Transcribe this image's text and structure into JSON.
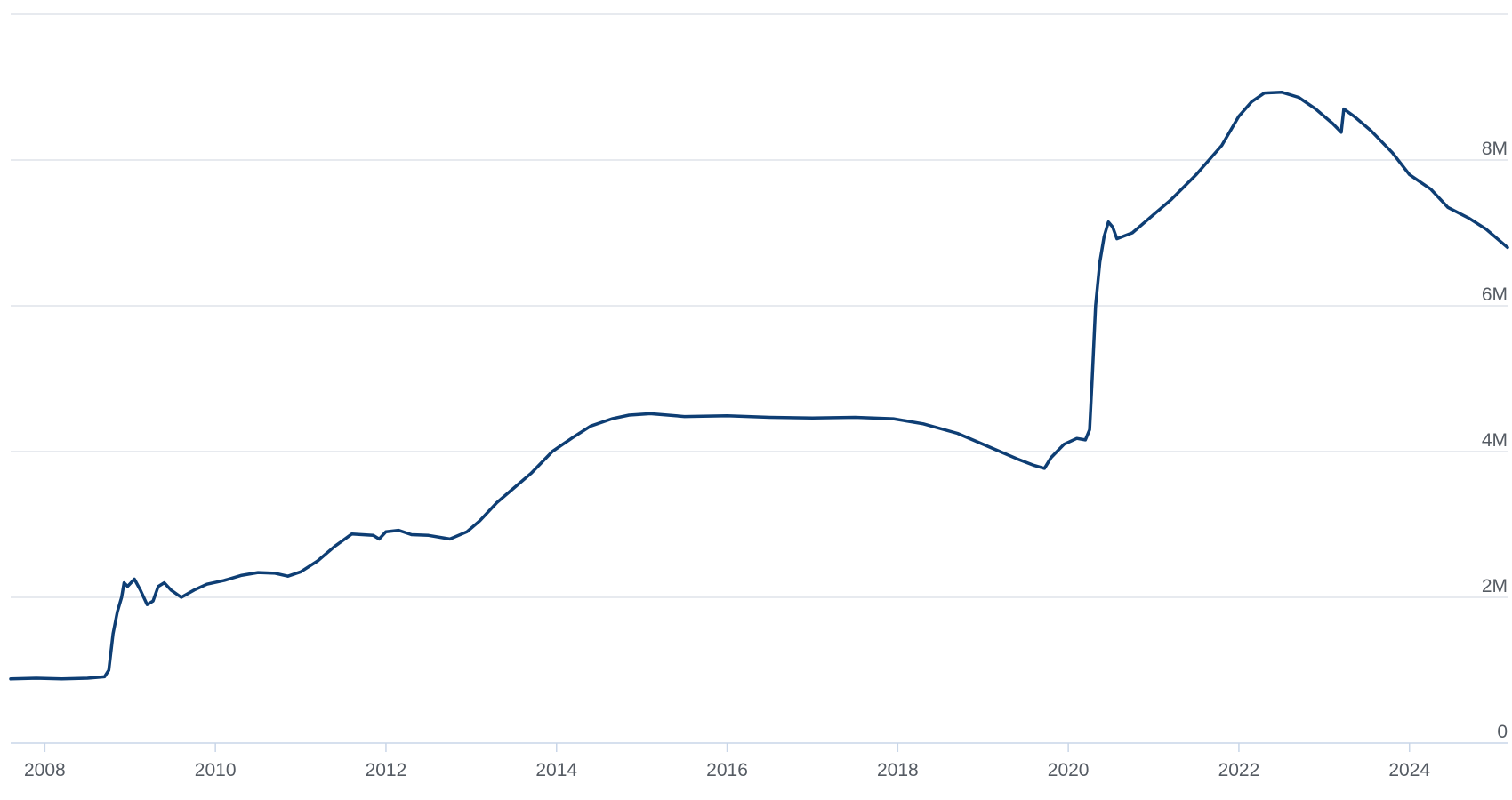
{
  "chart_data": {
    "type": "line",
    "title": "",
    "xlabel": "",
    "ylabel": "",
    "grid": true,
    "legend": "none",
    "xlim": [
      2007.6,
      2025.15
    ],
    "ylim": [
      0,
      10000000
    ],
    "y_ticks": [
      {
        "value": 0,
        "label": "0"
      },
      {
        "value": 2000000,
        "label": "2M"
      },
      {
        "value": 4000000,
        "label": "4M"
      },
      {
        "value": 6000000,
        "label": "6M"
      },
      {
        "value": 8000000,
        "label": "8M"
      }
    ],
    "x_ticks": [
      {
        "value": 2008,
        "label": "2008"
      },
      {
        "value": 2010,
        "label": "2010"
      },
      {
        "value": 2012,
        "label": "2012"
      },
      {
        "value": 2014,
        "label": "2014"
      },
      {
        "value": 2016,
        "label": "2016"
      },
      {
        "value": 2018,
        "label": "2018"
      },
      {
        "value": 2020,
        "label": "2020"
      },
      {
        "value": 2022,
        "label": "2022"
      },
      {
        "value": 2024,
        "label": "2024"
      }
    ],
    "series": [
      {
        "color": "#0e3e74",
        "points": [
          [
            2007.6,
            880000
          ],
          [
            2007.9,
            890000
          ],
          [
            2008.2,
            880000
          ],
          [
            2008.5,
            890000
          ],
          [
            2008.7,
            910000
          ],
          [
            2008.75,
            1000000
          ],
          [
            2008.8,
            1500000
          ],
          [
            2008.85,
            1800000
          ],
          [
            2008.9,
            2000000
          ],
          [
            2008.93,
            2200000
          ],
          [
            2008.97,
            2150000
          ],
          [
            2009.05,
            2250000
          ],
          [
            2009.12,
            2100000
          ],
          [
            2009.2,
            1900000
          ],
          [
            2009.27,
            1950000
          ],
          [
            2009.33,
            2150000
          ],
          [
            2009.4,
            2200000
          ],
          [
            2009.48,
            2100000
          ],
          [
            2009.6,
            2000000
          ],
          [
            2009.75,
            2100000
          ],
          [
            2009.9,
            2180000
          ],
          [
            2010.1,
            2230000
          ],
          [
            2010.3,
            2300000
          ],
          [
            2010.5,
            2340000
          ],
          [
            2010.7,
            2330000
          ],
          [
            2010.85,
            2290000
          ],
          [
            2011.0,
            2350000
          ],
          [
            2011.2,
            2500000
          ],
          [
            2011.4,
            2700000
          ],
          [
            2011.6,
            2870000
          ],
          [
            2011.85,
            2850000
          ],
          [
            2011.92,
            2800000
          ],
          [
            2012.0,
            2900000
          ],
          [
            2012.15,
            2920000
          ],
          [
            2012.3,
            2860000
          ],
          [
            2012.5,
            2850000
          ],
          [
            2012.75,
            2800000
          ],
          [
            2012.95,
            2900000
          ],
          [
            2013.1,
            3050000
          ],
          [
            2013.3,
            3300000
          ],
          [
            2013.5,
            3500000
          ],
          [
            2013.7,
            3700000
          ],
          [
            2013.95,
            4000000
          ],
          [
            2014.2,
            4200000
          ],
          [
            2014.4,
            4350000
          ],
          [
            2014.65,
            4450000
          ],
          [
            2014.85,
            4500000
          ],
          [
            2015.1,
            4520000
          ],
          [
            2015.5,
            4480000
          ],
          [
            2016.0,
            4490000
          ],
          [
            2016.5,
            4470000
          ],
          [
            2017.0,
            4460000
          ],
          [
            2017.5,
            4470000
          ],
          [
            2017.95,
            4450000
          ],
          [
            2018.3,
            4380000
          ],
          [
            2018.7,
            4250000
          ],
          [
            2019.1,
            4050000
          ],
          [
            2019.4,
            3900000
          ],
          [
            2019.6,
            3810000
          ],
          [
            2019.72,
            3770000
          ],
          [
            2019.8,
            3920000
          ],
          [
            2019.95,
            4100000
          ],
          [
            2020.1,
            4180000
          ],
          [
            2020.2,
            4160000
          ],
          [
            2020.25,
            4300000
          ],
          [
            2020.28,
            5000000
          ],
          [
            2020.32,
            6000000
          ],
          [
            2020.37,
            6600000
          ],
          [
            2020.42,
            6950000
          ],
          [
            2020.47,
            7150000
          ],
          [
            2020.52,
            7080000
          ],
          [
            2020.57,
            6920000
          ],
          [
            2020.75,
            7000000
          ],
          [
            2020.95,
            7200000
          ],
          [
            2021.2,
            7450000
          ],
          [
            2021.5,
            7800000
          ],
          [
            2021.8,
            8200000
          ],
          [
            2022.0,
            8600000
          ],
          [
            2022.15,
            8800000
          ],
          [
            2022.3,
            8920000
          ],
          [
            2022.5,
            8930000
          ],
          [
            2022.7,
            8860000
          ],
          [
            2022.9,
            8700000
          ],
          [
            2023.1,
            8500000
          ],
          [
            2023.2,
            8380000
          ],
          [
            2023.23,
            8700000
          ],
          [
            2023.35,
            8600000
          ],
          [
            2023.55,
            8400000
          ],
          [
            2023.8,
            8100000
          ],
          [
            2024.0,
            7800000
          ],
          [
            2024.25,
            7600000
          ],
          [
            2024.45,
            7350000
          ],
          [
            2024.7,
            7200000
          ],
          [
            2024.9,
            7050000
          ],
          [
            2025.15,
            6800000
          ]
        ]
      }
    ]
  }
}
